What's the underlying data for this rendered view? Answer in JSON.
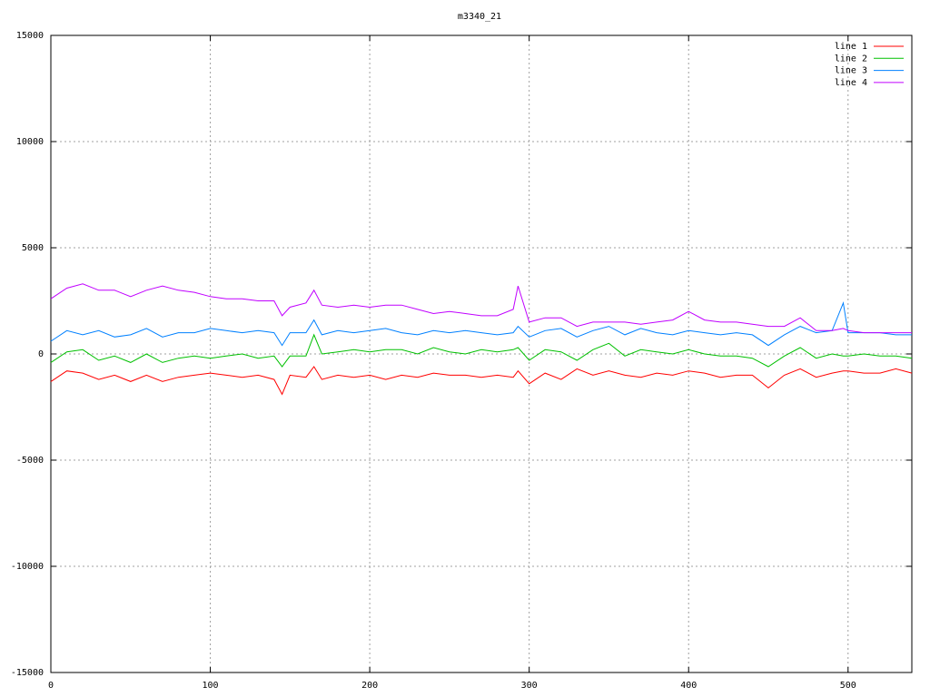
{
  "chart_data": {
    "type": "line",
    "title": "m3340_21",
    "x": [
      0,
      10,
      20,
      30,
      40,
      50,
      60,
      70,
      80,
      90,
      100,
      110,
      120,
      130,
      140,
      145,
      150,
      160,
      165,
      170,
      180,
      190,
      200,
      210,
      220,
      230,
      240,
      250,
      260,
      270,
      280,
      290,
      293,
      300,
      310,
      320,
      330,
      340,
      350,
      360,
      370,
      380,
      390,
      400,
      410,
      420,
      430,
      440,
      450,
      460,
      470,
      480,
      490,
      497,
      500,
      510,
      520,
      530,
      540
    ],
    "series": [
      {
        "name": "line 1",
        "color": "#ff0000",
        "values": [
          -1300,
          -800,
          -900,
          -1200,
          -1000,
          -1300,
          -1000,
          -1300,
          -1100,
          -1000,
          -900,
          -1000,
          -1100,
          -1000,
          -1200,
          -1900,
          -1000,
          -1100,
          -600,
          -1200,
          -1000,
          -1100,
          -1000,
          -1200,
          -1000,
          -1100,
          -900,
          -1000,
          -1000,
          -1100,
          -1000,
          -1100,
          -800,
          -1400,
          -900,
          -1200,
          -700,
          -1000,
          -800,
          -1000,
          -1100,
          -900,
          -1000,
          -800,
          -900,
          -1100,
          -1000,
          -1000,
          -1600,
          -1000,
          -700,
          -1100,
          -900,
          -800,
          -800,
          -900,
          -900,
          -700,
          -900
        ]
      },
      {
        "name": "line 2",
        "color": "#00c000",
        "values": [
          -400,
          100,
          200,
          -300,
          -100,
          -400,
          0,
          -400,
          -200,
          -100,
          -200,
          -100,
          0,
          -200,
          -100,
          -600,
          -100,
          -100,
          900,
          0,
          100,
          200,
          100,
          200,
          200,
          0,
          300,
          100,
          0,
          200,
          100,
          200,
          300,
          -300,
          200,
          100,
          -300,
          200,
          500,
          -100,
          200,
          100,
          0,
          200,
          0,
          -100,
          -100,
          -200,
          -600,
          -100,
          300,
          -200,
          0,
          -100,
          -100,
          0,
          -100,
          -100,
          -200
        ]
      },
      {
        "name": "line 3",
        "color": "#0080ff",
        "values": [
          600,
          1100,
          900,
          1100,
          800,
          900,
          1200,
          800,
          1000,
          1000,
          1200,
          1100,
          1000,
          1100,
          1000,
          400,
          1000,
          1000,
          1600,
          900,
          1100,
          1000,
          1100,
          1200,
          1000,
          900,
          1100,
          1000,
          1100,
          1000,
          900,
          1000,
          1300,
          800,
          1100,
          1200,
          800,
          1100,
          1300,
          900,
          1200,
          1000,
          900,
          1100,
          1000,
          900,
          1000,
          900,
          400,
          900,
          1300,
          1000,
          1100,
          2400,
          1000,
          1000,
          1000,
          900,
          900
        ]
      },
      {
        "name": "line 4",
        "color": "#c000ff",
        "values": [
          2600,
          3100,
          3300,
          3000,
          3000,
          2700,
          3000,
          3200,
          3000,
          2900,
          2700,
          2600,
          2600,
          2500,
          2500,
          1800,
          2200,
          2400,
          3000,
          2300,
          2200,
          2300,
          2200,
          2300,
          2300,
          2100,
          1900,
          2000,
          1900,
          1800,
          1800,
          2100,
          3200,
          1500,
          1700,
          1700,
          1300,
          1500,
          1500,
          1500,
          1400,
          1500,
          1600,
          2000,
          1600,
          1500,
          1500,
          1400,
          1300,
          1300,
          1700,
          1100,
          1100,
          1200,
          1100,
          1000,
          1000,
          1000,
          1000
        ]
      }
    ],
    "xlim": [
      0,
      540
    ],
    "xticks": [
      0,
      100,
      200,
      300,
      400,
      500
    ],
    "ylim": [
      -15000,
      15000
    ],
    "yticks": [
      -15000,
      -10000,
      -5000,
      0,
      5000,
      10000,
      15000
    ],
    "grid": true,
    "legend": "top-right"
  }
}
